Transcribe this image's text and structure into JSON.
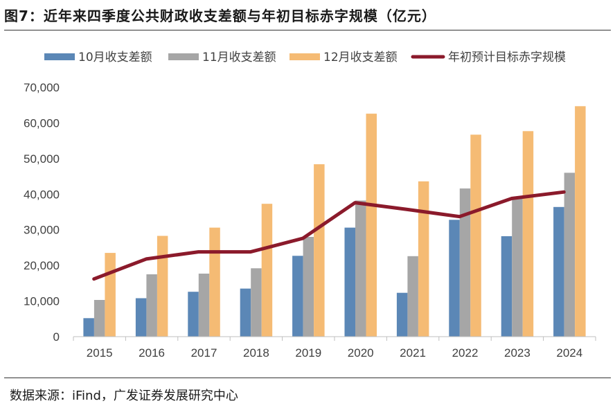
{
  "header": {
    "title": "图7：近年来四季度公共财政收支差额与年初目标赤字规模（亿元）"
  },
  "footer": {
    "source": "数据来源：iFind，广发证券发展研究中心"
  },
  "colors": {
    "oct": "#5b87b6",
    "nov": "#a6a6a6",
    "dec": "#f5bb74",
    "target": "#8b1a2b"
  },
  "chart_data": {
    "type": "bar",
    "title": "近年来四季度公共财政收支差额与年初目标赤字规模（亿元）",
    "categories": [
      "2015",
      "2016",
      "2017",
      "2018",
      "2019",
      "2020",
      "2021",
      "2022",
      "2023",
      "2024"
    ],
    "ylim": [
      0,
      70000
    ],
    "yticks": [
      "0",
      "10,000",
      "20,000",
      "30,000",
      "40,000",
      "50,000",
      "60,000",
      "70,000"
    ],
    "ytick_values": [
      0,
      10000,
      20000,
      30000,
      40000,
      50000,
      60000,
      70000
    ],
    "legend_position": "top",
    "series": [
      {
        "name": "10月收支差额",
        "type": "bar",
        "values": [
          5200,
          10800,
          12600,
          13500,
          22700,
          30600,
          12300,
          32800,
          28200,
          36400
        ]
      },
      {
        "name": "11月收支差额",
        "type": "bar",
        "values": [
          10300,
          17500,
          17700,
          19200,
          28000,
          38200,
          22600,
          41600,
          38800,
          46000
        ]
      },
      {
        "name": "12月收支差额",
        "type": "bar",
        "values": [
          23500,
          28300,
          30600,
          37300,
          48400,
          62600,
          43600,
          56700,
          57700,
          64700
        ]
      },
      {
        "name": "年初预计目标赤字规模",
        "type": "line",
        "values": [
          16200,
          21800,
          23800,
          23800,
          27600,
          37600,
          35700,
          33700,
          38800,
          40600
        ]
      }
    ]
  }
}
